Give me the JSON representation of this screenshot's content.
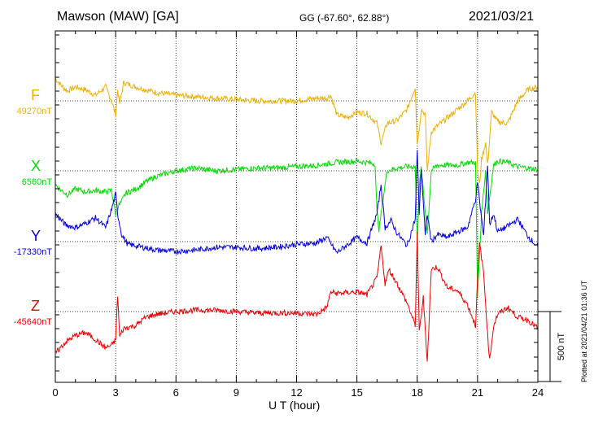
{
  "header": {
    "title": "Mawson (MAW)  [GA]",
    "coords": "GG (-67.60°,  62.88°)",
    "date": "2021/03/21"
  },
  "footer": "Plotted at 2021/04/21 01:36 UT",
  "chart_data": {
    "type": "line",
    "xlabel": "U T (hour)",
    "xlim": [
      0,
      24
    ],
    "xticks": [
      "0",
      "3",
      "6",
      "9",
      "12",
      "15",
      "18",
      "21",
      "24"
    ],
    "scale_bar_label": "500 nT",
    "scale_bar_nT": 500,
    "grid": true,
    "series": [
      {
        "name": "F",
        "baseline_label": "49270nT",
        "color": "#f0b000",
        "x": [
          0,
          0.3,
          0.6,
          1,
          1.5,
          2,
          2.5,
          2.8,
          3.0,
          3.1,
          3.2,
          3.4,
          4,
          5,
          6,
          7,
          8,
          9,
          10,
          11,
          12,
          13,
          13.5,
          13.7,
          14,
          14.5,
          15,
          15.5,
          16,
          16.2,
          16.5,
          17,
          17.5,
          17.9,
          18.0,
          18.1,
          18.2,
          18.4,
          18.5,
          18.7,
          19,
          19.5,
          20,
          20.5,
          20.9,
          21.0,
          21.1,
          21.2,
          21.4,
          21.5,
          21.7,
          22,
          22.5,
          23,
          23.5,
          24
        ],
        "values": [
          160,
          110,
          70,
          100,
          80,
          40,
          100,
          0,
          -100,
          80,
          -20,
          130,
          100,
          60,
          40,
          30,
          20,
          10,
          0,
          0,
          0,
          20,
          20,
          40,
          -100,
          -120,
          -80,
          -90,
          -160,
          -300,
          -160,
          -140,
          -60,
          100,
          -300,
          -200,
          -60,
          -100,
          -500,
          -220,
          -180,
          -120,
          -60,
          0,
          60,
          -500,
          -600,
          -420,
          -300,
          -460,
          -80,
          -150,
          -160,
          0,
          80,
          100
        ]
      },
      {
        "name": "X",
        "baseline_label": "6560nT",
        "color": "#00dd00",
        "x": [
          0,
          0.3,
          0.6,
          1,
          1.5,
          2,
          2.5,
          2.8,
          3.0,
          3.1,
          3.3,
          3.5,
          4,
          4.5,
          5,
          6,
          7,
          8,
          9,
          10,
          11,
          12,
          13,
          14,
          15,
          15.5,
          15.9,
          16.0,
          16.1,
          16.3,
          16.5,
          17,
          17.5,
          17.9,
          18.0,
          18.1,
          18.2,
          18.5,
          18.7,
          19,
          19.5,
          20,
          20.5,
          20.9,
          21.0,
          21.1,
          21.2,
          21.4,
          21.5,
          21.8,
          22,
          22.5,
          23,
          23.5,
          24
        ],
        "values": [
          -100,
          -140,
          -170,
          -130,
          -150,
          -140,
          -150,
          -140,
          -310,
          -260,
          -220,
          -160,
          -130,
          -80,
          -40,
          0,
          20,
          0,
          10,
          20,
          20,
          30,
          40,
          60,
          70,
          60,
          50,
          -300,
          -420,
          -200,
          0,
          20,
          30,
          30,
          -500,
          -120,
          20,
          -450,
          0,
          40,
          40,
          40,
          60,
          60,
          -900,
          -600,
          -300,
          0,
          -300,
          40,
          70,
          60,
          30,
          20,
          10
        ]
      },
      {
        "name": "Y",
        "baseline_label": "-17330nT",
        "color": "#0000dd",
        "x": [
          0,
          0.5,
          1,
          1.5,
          2,
          2.5,
          2.8,
          3.0,
          3.1,
          3.3,
          3.6,
          4,
          5,
          6,
          7,
          8,
          9,
          10,
          11,
          12,
          13,
          13.5,
          14,
          15,
          15.5,
          16,
          16.2,
          16.4,
          16.7,
          17,
          17.5,
          17.9,
          18.0,
          18.1,
          18.2,
          18.4,
          18.5,
          18.7,
          19,
          19.5,
          20,
          20.5,
          20.9,
          21.0,
          21.1,
          21.3,
          21.5,
          21.6,
          21.8,
          22,
          22.5,
          23,
          23.5,
          24
        ],
        "values": [
          200,
          120,
          100,
          130,
          170,
          100,
          230,
          340,
          200,
          50,
          -20,
          -30,
          -60,
          -70,
          -60,
          -40,
          -40,
          -50,
          -40,
          -20,
          -10,
          30,
          -80,
          30,
          -10,
          200,
          410,
          100,
          150,
          60,
          -30,
          160,
          650,
          200,
          530,
          40,
          200,
          0,
          50,
          30,
          70,
          100,
          300,
          430,
          290,
          40,
          550,
          120,
          200,
          70,
          110,
          160,
          40,
          -40
        ]
      },
      {
        "name": "Z",
        "baseline_label": "-45640nT",
        "color": "#ee0000",
        "x": [
          0,
          0.5,
          1,
          1.5,
          2,
          2.5,
          2.8,
          3.0,
          3.1,
          3.2,
          3.4,
          4,
          4.5,
          5,
          6,
          7,
          8,
          9,
          10,
          11,
          12,
          13,
          13.5,
          13.7,
          14,
          15,
          15.5,
          16,
          16.2,
          16.4,
          16.6,
          17,
          17.5,
          17.9,
          18.0,
          18.1,
          18.3,
          18.5,
          18.7,
          19,
          19.5,
          20,
          20.5,
          20.9,
          21.0,
          21.1,
          21.3,
          21.5,
          21.6,
          21.8,
          22,
          22.5,
          23,
          23.5,
          24
        ],
        "values": [
          -300,
          -220,
          -170,
          -150,
          -200,
          -260,
          -240,
          -200,
          120,
          -180,
          -120,
          -100,
          -40,
          -20,
          0,
          10,
          10,
          0,
          -10,
          -10,
          -10,
          -20,
          30,
          140,
          130,
          140,
          120,
          240,
          470,
          200,
          300,
          200,
          60,
          -100,
          560,
          -150,
          100,
          -360,
          300,
          320,
          170,
          150,
          50,
          -100,
          230,
          490,
          280,
          -160,
          -350,
          -100,
          -20,
          30,
          -40,
          -60,
          -120
        ]
      }
    ]
  }
}
